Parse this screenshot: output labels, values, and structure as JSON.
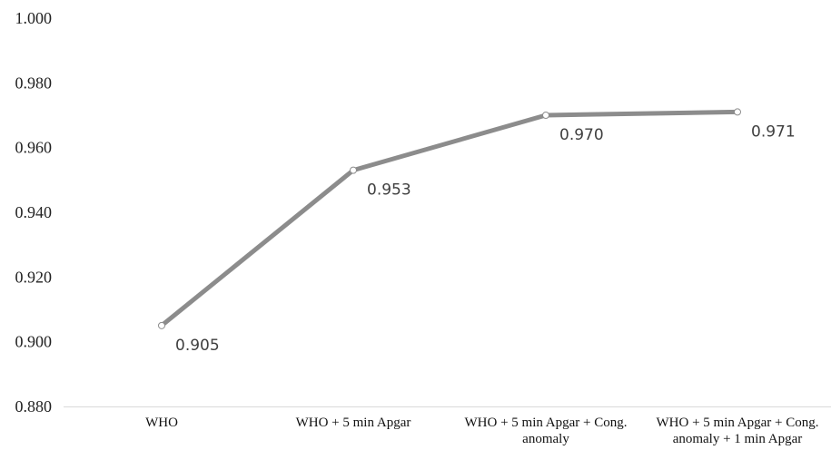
{
  "chart_data": {
    "type": "line",
    "categories": [
      [
        "WHO"
      ],
      [
        "WHO + 5 min Apgar"
      ],
      [
        "WHO + 5 min Apgar + Cong.",
        "anomaly"
      ],
      [
        "WHO + 5 min Apgar + Cong.",
        "anomaly + 1 min Apgar"
      ]
    ],
    "series": [
      {
        "values": [
          0.905,
          0.953,
          0.97,
          0.971
        ]
      }
    ],
    "data_labels": [
      "0.905",
      "0.953",
      "0.970",
      "0.971"
    ],
    "y_ticks": [
      "0.880",
      "0.900",
      "0.920",
      "0.940",
      "0.960",
      "0.980",
      "1.000"
    ],
    "ylim": [
      0.88,
      1.0
    ],
    "grid": false,
    "legend": "none",
    "colors": {
      "line": "#8c8c8c",
      "marker_fill": "#ffffff",
      "axis": "#d9d9d9"
    }
  }
}
